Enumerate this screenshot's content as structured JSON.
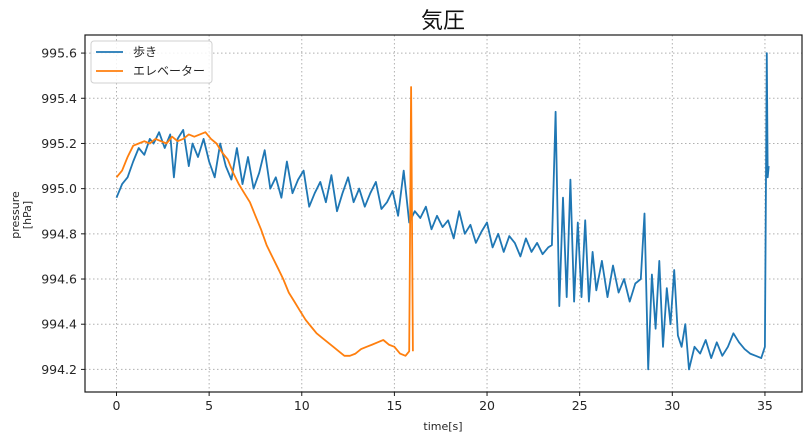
{
  "chart_data": {
    "type": "line",
    "title": "気圧",
    "xlabel": "time[s]",
    "ylabel": "pressure\n[hPa]",
    "ylabel_lines": [
      "pressure",
      "[hPa]"
    ],
    "xlim": [
      -1.7,
      37
    ],
    "ylim": [
      994.1,
      995.68
    ],
    "xticks": [
      0,
      5,
      10,
      15,
      20,
      25,
      30,
      35
    ],
    "xtick_labels": [
      "0",
      "5",
      "10",
      "15",
      "20",
      "25",
      "30",
      "35"
    ],
    "yticks": [
      994.2,
      994.4,
      994.6,
      994.8,
      995.0,
      995.2,
      995.4,
      995.6
    ],
    "ytick_labels": [
      "994.2",
      "994.4",
      "994.6",
      "994.8",
      "995.0",
      "995.2",
      "995.4",
      "995.6"
    ],
    "grid": true,
    "legend_position": "upper left",
    "series": [
      {
        "name": "歩き",
        "color": "#1f77b4",
        "x": [
          0,
          0.3,
          0.6,
          0.9,
          1.2,
          1.5,
          1.8,
          2.0,
          2.3,
          2.6,
          2.9,
          3.1,
          3.3,
          3.6,
          3.9,
          4.1,
          4.4,
          4.7,
          5.0,
          5.3,
          5.6,
          5.9,
          6.2,
          6.5,
          6.8,
          7.1,
          7.4,
          7.7,
          8.0,
          8.3,
          8.6,
          8.9,
          9.2,
          9.5,
          9.8,
          10.1,
          10.4,
          10.7,
          11.0,
          11.3,
          11.6,
          11.9,
          12.2,
          12.5,
          12.8,
          13.1,
          13.4,
          13.7,
          14.0,
          14.3,
          14.6,
          14.9,
          15.2,
          15.5,
          15.8,
          16.1,
          16.4,
          16.7,
          17.0,
          17.3,
          17.6,
          17.9,
          18.2,
          18.5,
          18.8,
          19.1,
          19.4,
          19.7,
          20.0,
          20.3,
          20.6,
          20.9,
          21.2,
          21.5,
          21.8,
          22.1,
          22.4,
          22.7,
          23.0,
          23.3,
          23.5,
          23.7,
          23.9,
          24.1,
          24.3,
          24.5,
          24.7,
          24.9,
          25.1,
          25.3,
          25.5,
          25.7,
          25.9,
          26.2,
          26.5,
          26.8,
          27.1,
          27.4,
          27.7,
          28.0,
          28.3,
          28.5,
          28.7,
          28.9,
          29.1,
          29.3,
          29.5,
          29.7,
          29.9,
          30.1,
          30.3,
          30.5,
          30.7,
          30.9,
          31.2,
          31.5,
          31.8,
          32.1,
          32.4,
          32.7,
          33.0,
          33.3,
          33.6,
          33.9,
          34.2,
          34.5,
          34.8,
          35.0,
          35.1,
          35.15,
          35.2
        ],
        "y": [
          994.96,
          995.02,
          995.05,
          995.12,
          995.18,
          995.15,
          995.22,
          995.2,
          995.25,
          995.18,
          995.24,
          995.05,
          995.22,
          995.26,
          995.1,
          995.2,
          995.14,
          995.22,
          995.12,
          995.05,
          995.2,
          995.1,
          995.04,
          995.18,
          995.02,
          995.14,
          995.0,
          995.07,
          995.17,
          995.0,
          995.05,
          994.96,
          995.12,
          994.98,
          995.04,
          995.08,
          994.92,
          994.98,
          995.03,
          994.94,
          995.06,
          994.9,
          994.98,
          995.05,
          994.94,
          995.0,
          994.92,
          994.98,
          995.03,
          994.91,
          994.94,
          994.99,
          994.88,
          995.08,
          994.85,
          994.9,
          994.87,
          994.92,
          994.82,
          994.88,
          994.83,
          994.86,
          994.78,
          994.9,
          994.8,
          994.84,
          994.76,
          994.81,
          994.85,
          994.74,
          994.8,
          994.72,
          994.79,
          994.76,
          994.7,
          994.78,
          994.72,
          994.76,
          994.71,
          994.74,
          994.75,
          995.34,
          994.48,
          994.96,
          994.52,
          995.04,
          994.5,
          994.85,
          994.52,
          994.86,
          994.5,
          994.72,
          994.55,
          994.68,
          994.52,
          994.66,
          994.54,
          994.6,
          994.5,
          994.58,
          994.6,
          994.89,
          994.2,
          994.62,
          994.38,
          994.68,
          994.3,
          994.56,
          994.4,
          994.64,
          994.35,
          994.3,
          994.4,
          994.2,
          994.3,
          994.27,
          994.33,
          994.25,
          994.32,
          994.26,
          994.3,
          994.36,
          994.32,
          994.29,
          994.27,
          994.26,
          994.25,
          994.3,
          995.6,
          995.05,
          995.1
        ]
      },
      {
        "name": "エレベーター",
        "color": "#ff7f0e",
        "x": [
          0,
          0.3,
          0.6,
          0.9,
          1.2,
          1.5,
          1.8,
          2.1,
          2.4,
          2.7,
          3.0,
          3.3,
          3.6,
          3.9,
          4.2,
          4.5,
          4.8,
          5.1,
          5.4,
          5.7,
          6.0,
          6.3,
          6.6,
          6.9,
          7.2,
          7.5,
          7.8,
          8.1,
          8.4,
          8.7,
          9.0,
          9.3,
          9.6,
          9.9,
          10.2,
          10.5,
          10.8,
          11.1,
          11.4,
          11.7,
          12.0,
          12.3,
          12.6,
          12.9,
          13.2,
          13.5,
          13.8,
          14.1,
          14.4,
          14.7,
          15.0,
          15.3,
          15.6,
          15.8,
          15.9,
          16.0
        ],
        "y": [
          995.05,
          995.08,
          995.14,
          995.19,
          995.2,
          995.21,
          995.2,
          995.22,
          995.21,
          995.2,
          995.23,
          995.21,
          995.22,
          995.24,
          995.23,
          995.24,
          995.25,
          995.22,
          995.2,
          995.16,
          995.13,
          995.07,
          995.02,
          994.98,
          994.94,
          994.88,
          994.82,
          994.75,
          994.7,
          994.65,
          994.6,
          994.54,
          994.5,
          994.46,
          994.42,
          994.39,
          994.36,
          994.34,
          994.32,
          994.3,
          994.28,
          994.26,
          994.26,
          994.27,
          994.29,
          994.3,
          994.31,
          994.32,
          994.33,
          994.31,
          994.3,
          994.27,
          994.26,
          994.28,
          995.45,
          994.28
        ]
      }
    ]
  }
}
